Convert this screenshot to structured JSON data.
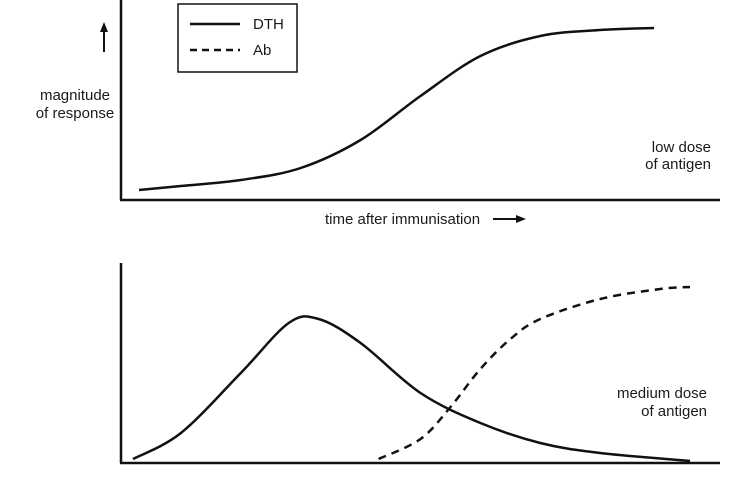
{
  "legend": {
    "entries": [
      {
        "label": "DTH",
        "style": "solid"
      },
      {
        "label": "Ab",
        "style": "dashed"
      }
    ]
  },
  "ylabel": [
    "magnitude",
    "of response"
  ],
  "xlabel": "time after immunisation",
  "panels": [
    {
      "annotation": [
        "low dose",
        "of antigen"
      ]
    },
    {
      "annotation": [
        "medium dose",
        "of antigen"
      ]
    }
  ],
  "colors": {
    "line": "#111111",
    "axis": "#111111"
  },
  "chart_data": [
    {
      "type": "line",
      "title": "",
      "xlabel": "time after immunisation",
      "ylabel": "magnitude of response",
      "x": [
        0.03,
        0.1,
        0.2,
        0.3,
        0.4,
        0.5,
        0.6,
        0.7,
        0.8,
        0.89
      ],
      "series": [
        {
          "name": "DTH",
          "style": "solid",
          "x": [
            0.03,
            0.1,
            0.2,
            0.3,
            0.4,
            0.5,
            0.6,
            0.7,
            0.8,
            0.89
          ],
          "values": [
            0.05,
            0.07,
            0.1,
            0.16,
            0.3,
            0.52,
            0.72,
            0.82,
            0.85,
            0.86
          ]
        }
      ],
      "annotation": "low dose of antigen",
      "legend_position": "top-left",
      "ylim": [
        0,
        1
      ]
    },
    {
      "type": "line",
      "title": "",
      "xlabel": "",
      "ylabel": "",
      "series": [
        {
          "name": "DTH",
          "style": "solid",
          "x": [
            0.02,
            0.1,
            0.2,
            0.28,
            0.33,
            0.4,
            0.5,
            0.6,
            0.7,
            0.8,
            0.95
          ],
          "values": [
            0.02,
            0.15,
            0.45,
            0.7,
            0.72,
            0.6,
            0.35,
            0.2,
            0.1,
            0.05,
            0.01
          ]
        },
        {
          "name": "Ab",
          "style": "dashed",
          "x": [
            0.43,
            0.5,
            0.55,
            0.6,
            0.65,
            0.7,
            0.8,
            0.9,
            0.95
          ],
          "values": [
            0.02,
            0.12,
            0.28,
            0.47,
            0.62,
            0.72,
            0.82,
            0.87,
            0.88
          ]
        }
      ],
      "annotation": "medium dose of antigen",
      "ylim": [
        0,
        1
      ]
    }
  ]
}
